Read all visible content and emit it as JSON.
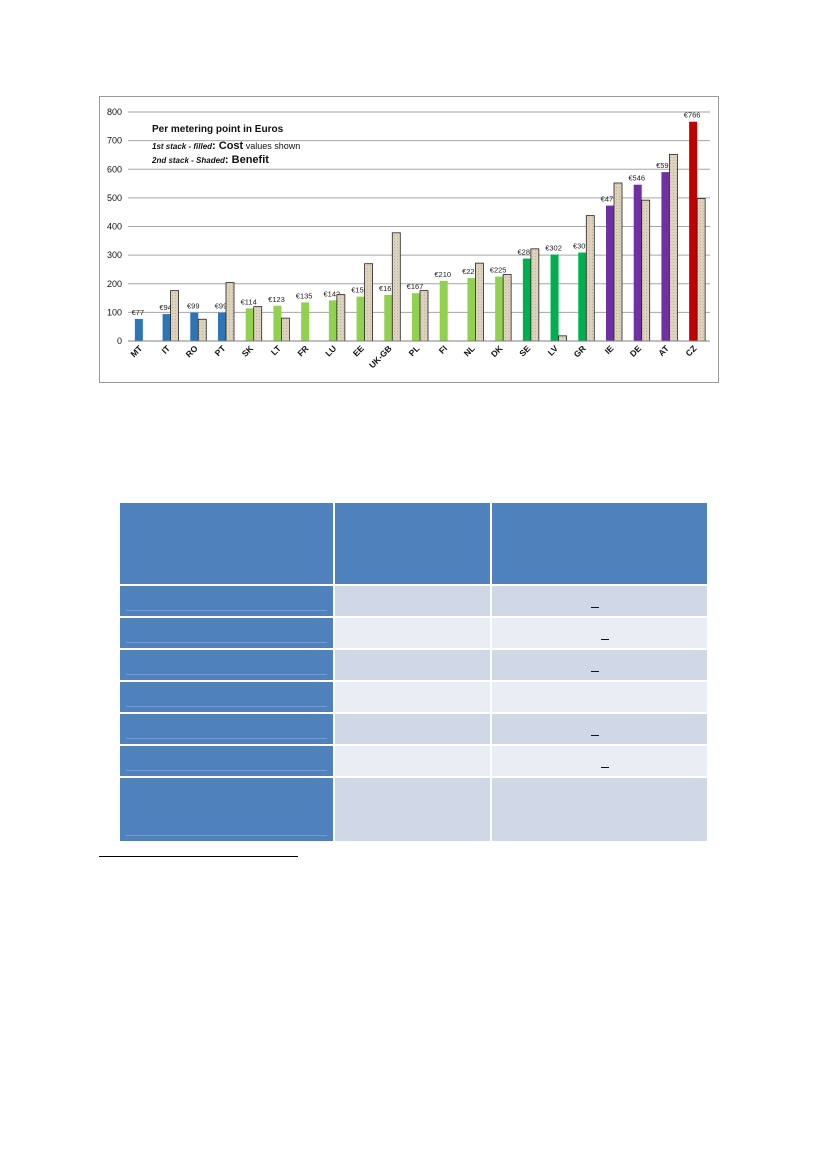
{
  "legend": {
    "title": "Per metering point in Euros",
    "line1_prefix": "1st stack - filled",
    "line1_big": ": Cost",
    "line1_rest": " values shown",
    "line2_prefix": "2nd stack - Shaded",
    "line2_big": ": Benefit"
  },
  "colors": {
    "blue": "#2e75b6",
    "lightgreen": "#92d050",
    "green": "#00b050",
    "purple": "#7030a0",
    "red": "#c00000",
    "benefit": "#ddd2bd",
    "table_header": "#4f81bd",
    "table_dark": "#d0d8e8",
    "table_light": "#e9edf4"
  },
  "chart_data": {
    "type": "bar",
    "categories": [
      "MT",
      "IT",
      "RO",
      "PT",
      "SK",
      "LT",
      "FR",
      "LU",
      "EE",
      "UK-GB",
      "PL",
      "FI",
      "NL",
      "DK",
      "SE",
      "LV",
      "GR",
      "IE",
      "DE",
      "AT",
      "CZ"
    ],
    "series": [
      {
        "name": "Cost",
        "values": [
          77,
          94,
          99,
          99,
          114,
          123,
          135,
          142,
          155,
          161,
          167,
          210,
          220,
          225,
          288,
          302,
          309,
          473,
          546,
          590,
          766
        ],
        "labels": [
          "€77",
          "€94",
          "€99",
          "€99",
          "€114",
          "€123",
          "€135",
          "€142",
          "€155",
          "€161",
          "€167",
          "€210",
          "€220",
          "€225",
          "€288",
          "€302",
          "€309",
          "€473",
          "€546",
          "€590",
          "€766"
        ],
        "colors": [
          "blue",
          "blue",
          "blue",
          "blue",
          "lightgreen",
          "lightgreen",
          "lightgreen",
          "lightgreen",
          "lightgreen",
          "lightgreen",
          "lightgreen",
          "lightgreen",
          "lightgreen",
          "lightgreen",
          "green",
          "green",
          "green",
          "purple",
          "purple",
          "purple",
          "red"
        ]
      },
      {
        "name": "Benefit",
        "values": [
          null,
          176,
          76,
          204,
          120,
          80,
          null,
          162,
          270,
          378,
          176,
          null,
          272,
          232,
          322,
          18,
          438,
          552,
          492,
          652,
          498
        ]
      }
    ],
    "ylim": [
      0,
      800
    ],
    "yticks": [
      0,
      100,
      200,
      300,
      400,
      500,
      600,
      700,
      800
    ],
    "grid": true
  },
  "table": {
    "rows": [
      {
        "kind": "header",
        "shade": "hdr"
      },
      {
        "kind": "body",
        "shade": "shade-dark",
        "mark": true
      },
      {
        "kind": "body",
        "shade": "shade-light",
        "mark": true
      },
      {
        "kind": "body",
        "shade": "shade-dark",
        "mark": true
      },
      {
        "kind": "body",
        "shade": "shade-light",
        "mark": false
      },
      {
        "kind": "body",
        "shade": "shade-dark",
        "mark": true
      },
      {
        "kind": "body",
        "shade": "shade-light",
        "mark": true
      },
      {
        "kind": "body",
        "shade": "shade-dark",
        "mark": false
      }
    ]
  }
}
